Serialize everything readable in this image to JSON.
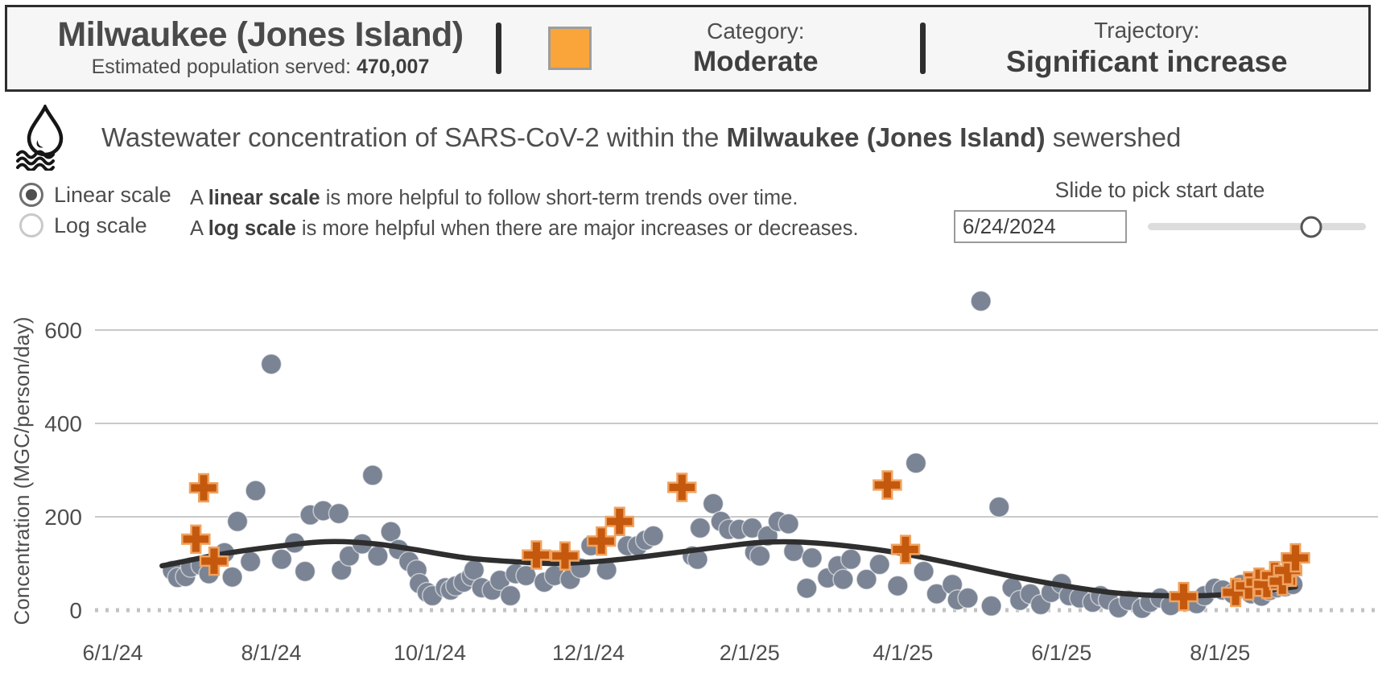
{
  "header": {
    "site_name": "Milwaukee (Jones Island)",
    "population_label": "Estimated population served: ",
    "population_value": "470,007",
    "category_label": "Category:",
    "category_value": "Moderate",
    "category_color": "#FAA53A",
    "trajectory_label": "Trajectory:",
    "trajectory_value": "Significant increase"
  },
  "chart_header": {
    "title_prefix": "Wastewater concentration of SARS-CoV-2 within the ",
    "title_site": "Milwaukee (Jones Island)",
    "title_suffix": " sewershed",
    "icon": "water-drop-waves-icon"
  },
  "controls": {
    "scale_options": [
      {
        "label": "Linear scale",
        "selected": true
      },
      {
        "label": "Log scale",
        "selected": false
      }
    ],
    "scale_help": [
      {
        "lead": "A ",
        "bold": "linear scale",
        "rest": " is more helpful to follow short-term trends over time."
      },
      {
        "lead": "A ",
        "bold": "log scale",
        "rest": " is more helpful when there are major increases or decreases."
      }
    ],
    "slider_label": "Slide to pick start date",
    "start_date_value": "6/24/2024",
    "slider_position_pct": 75
  },
  "chart_data": {
    "type": "scatter",
    "title": "Wastewater concentration of SARS-CoV-2 within the Milwaukee (Jones Island) sewershed",
    "xlabel": "",
    "ylabel": "Concentration (MGC/person/day)",
    "ylim": [
      0,
      700
    ],
    "yticks": [
      0,
      200,
      400,
      600
    ],
    "grid": "horizontal",
    "legend": "none",
    "xticks": [
      {
        "label": "6/1/24",
        "date": "2024-06-01"
      },
      {
        "label": "8/1/24",
        "date": "2024-08-01"
      },
      {
        "label": "10/1/24",
        "date": "2024-10-01"
      },
      {
        "label": "12/1/24",
        "date": "2024-12-01"
      },
      {
        "label": "2/1/25",
        "date": "2025-02-01"
      },
      {
        "label": "4/1/25",
        "date": "2025-04-01"
      },
      {
        "label": "6/1/25",
        "date": "2025-06-01"
      },
      {
        "label": "8/1/25",
        "date": "2025-08-01"
      }
    ],
    "series": [
      {
        "name": "wastewater samples (dots)",
        "marker": "circle",
        "color": "#7B8494",
        "points": [
          [
            "2024-06-24",
            85
          ],
          [
            "2024-06-26",
            70
          ],
          [
            "2024-06-29",
            72
          ],
          [
            "2024-07-01",
            92
          ],
          [
            "2024-07-05",
            96
          ],
          [
            "2024-07-08",
            78
          ],
          [
            "2024-07-14",
            123
          ],
          [
            "2024-07-17",
            71
          ],
          [
            "2024-07-19",
            190
          ],
          [
            "2024-07-24",
            104
          ],
          [
            "2024-07-26",
            256
          ],
          [
            "2024-08-01",
            527
          ],
          [
            "2024-08-05",
            109
          ],
          [
            "2024-08-10",
            144
          ],
          [
            "2024-08-14",
            83
          ],
          [
            "2024-08-16",
            204
          ],
          [
            "2024-08-21",
            213
          ],
          [
            "2024-08-27",
            207
          ],
          [
            "2024-08-28",
            86
          ],
          [
            "2024-08-31",
            116
          ],
          [
            "2024-09-05",
            142
          ],
          [
            "2024-09-09",
            289
          ],
          [
            "2024-09-11",
            116
          ],
          [
            "2024-09-16",
            168
          ],
          [
            "2024-09-19",
            130
          ],
          [
            "2024-09-23",
            104
          ],
          [
            "2024-09-26",
            86
          ],
          [
            "2024-09-27",
            57
          ],
          [
            "2024-09-30",
            38
          ],
          [
            "2024-10-02",
            31
          ],
          [
            "2024-10-07",
            48
          ],
          [
            "2024-10-09",
            43
          ],
          [
            "2024-10-11",
            52
          ],
          [
            "2024-10-14",
            60
          ],
          [
            "2024-10-17",
            73
          ],
          [
            "2024-10-18",
            86
          ],
          [
            "2024-10-21",
            48
          ],
          [
            "2024-10-25",
            43
          ],
          [
            "2024-10-28",
            64
          ],
          [
            "2024-11-01",
            31
          ],
          [
            "2024-11-03",
            78
          ],
          [
            "2024-11-07",
            74
          ],
          [
            "2024-11-14",
            60
          ],
          [
            "2024-11-18",
            74
          ],
          [
            "2024-11-24",
            66
          ],
          [
            "2024-11-28",
            90
          ],
          [
            "2024-12-02",
            138
          ],
          [
            "2024-12-08",
            86
          ],
          [
            "2024-12-16",
            138
          ],
          [
            "2024-12-20",
            138
          ],
          [
            "2024-12-23",
            150
          ],
          [
            "2024-12-26",
            159
          ],
          [
            "2025-01-10",
            116
          ],
          [
            "2025-01-12",
            109
          ],
          [
            "2025-01-13",
            176
          ],
          [
            "2025-01-18",
            228
          ],
          [
            "2025-01-21",
            190
          ],
          [
            "2025-01-24",
            173
          ],
          [
            "2025-01-28",
            173
          ],
          [
            "2025-02-02",
            176
          ],
          [
            "2025-02-03",
            124
          ],
          [
            "2025-02-05",
            116
          ],
          [
            "2025-02-08",
            159
          ],
          [
            "2025-02-12",
            190
          ],
          [
            "2025-02-16",
            185
          ],
          [
            "2025-02-18",
            126
          ],
          [
            "2025-02-23",
            47
          ],
          [
            "2025-02-25",
            112
          ],
          [
            "2025-03-03",
            69
          ],
          [
            "2025-03-07",
            95
          ],
          [
            "2025-03-09",
            66
          ],
          [
            "2025-03-12",
            109
          ],
          [
            "2025-03-18",
            66
          ],
          [
            "2025-03-23",
            98
          ],
          [
            "2025-03-30",
            52
          ],
          [
            "2025-04-06",
            315
          ],
          [
            "2025-04-09",
            83
          ],
          [
            "2025-04-14",
            35
          ],
          [
            "2025-04-20",
            55
          ],
          [
            "2025-04-22",
            22
          ],
          [
            "2025-04-26",
            26
          ],
          [
            "2025-05-01",
            662
          ],
          [
            "2025-05-05",
            9
          ],
          [
            "2025-05-08",
            221
          ],
          [
            "2025-05-13",
            48
          ],
          [
            "2025-05-16",
            21
          ],
          [
            "2025-05-20",
            35
          ],
          [
            "2025-05-24",
            12
          ],
          [
            "2025-05-28",
            38
          ],
          [
            "2025-06-01",
            57
          ],
          [
            "2025-06-04",
            31
          ],
          [
            "2025-06-08",
            26
          ],
          [
            "2025-06-13",
            17
          ],
          [
            "2025-06-16",
            31
          ],
          [
            "2025-06-19",
            22
          ],
          [
            "2025-06-23",
            5
          ],
          [
            "2025-06-27",
            21
          ],
          [
            "2025-07-02",
            4
          ],
          [
            "2025-07-05",
            17
          ],
          [
            "2025-07-09",
            26
          ],
          [
            "2025-07-13",
            10
          ],
          [
            "2025-07-23",
            14
          ],
          [
            "2025-07-26",
            31
          ],
          [
            "2025-07-30",
            47
          ],
          [
            "2025-08-02",
            43
          ],
          [
            "2025-08-06",
            35
          ],
          [
            "2025-08-09",
            55
          ],
          [
            "2025-08-13",
            35
          ],
          [
            "2025-08-17",
            30
          ],
          [
            "2025-08-20",
            42
          ],
          [
            "2025-08-23",
            48
          ],
          [
            "2025-08-26",
            50
          ],
          [
            "2025-08-29",
            55
          ]
        ]
      },
      {
        "name": "highlighted samples (orange crosses)",
        "marker": "plus",
        "color": "#C4590E",
        "points": [
          [
            "2024-07-03",
            152
          ],
          [
            "2024-07-06",
            262
          ],
          [
            "2024-07-10",
            105
          ],
          [
            "2024-11-11",
            118
          ],
          [
            "2024-11-22",
            116
          ],
          [
            "2024-12-06",
            148
          ],
          [
            "2024-12-13",
            190
          ],
          [
            "2025-01-06",
            263
          ],
          [
            "2025-03-26",
            268
          ],
          [
            "2025-04-02",
            130
          ],
          [
            "2025-07-18",
            29
          ],
          [
            "2025-08-07",
            38
          ],
          [
            "2025-08-12",
            52
          ],
          [
            "2025-08-16",
            60
          ],
          [
            "2025-08-19",
            55
          ],
          [
            "2025-08-22",
            74
          ],
          [
            "2025-08-25",
            62
          ],
          [
            "2025-08-27",
            85
          ],
          [
            "2025-08-30",
            112
          ]
        ]
      },
      {
        "name": "smoothed trend line",
        "marker": "line",
        "color": "#2E2E2E",
        "points": [
          [
            "2024-06-20",
            95
          ],
          [
            "2024-07-15",
            122
          ],
          [
            "2024-08-10",
            141
          ],
          [
            "2024-08-25",
            147
          ],
          [
            "2024-09-10",
            142
          ],
          [
            "2024-09-25",
            130
          ],
          [
            "2024-10-15",
            112
          ],
          [
            "2024-11-05",
            103
          ],
          [
            "2024-11-20",
            100
          ],
          [
            "2024-12-10",
            107
          ],
          [
            "2024-12-30",
            120
          ],
          [
            "2025-01-20",
            135
          ],
          [
            "2025-02-05",
            145
          ],
          [
            "2025-02-20",
            146
          ],
          [
            "2025-03-10",
            138
          ],
          [
            "2025-03-30",
            123
          ],
          [
            "2025-04-20",
            100
          ],
          [
            "2025-05-10",
            76
          ],
          [
            "2025-05-30",
            55
          ],
          [
            "2025-06-20",
            38
          ],
          [
            "2025-07-10",
            31
          ],
          [
            "2025-07-30",
            32
          ],
          [
            "2025-08-15",
            40
          ],
          [
            "2025-08-30",
            50
          ]
        ]
      }
    ]
  }
}
